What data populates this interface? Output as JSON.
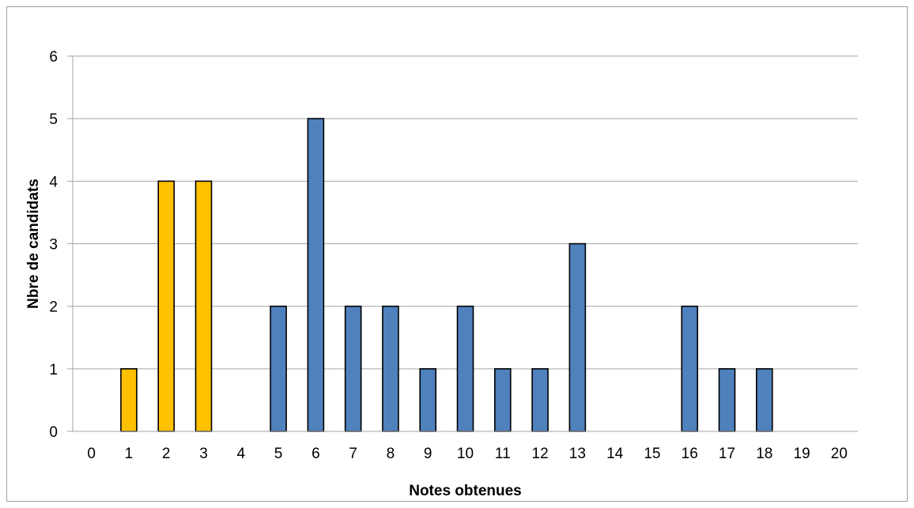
{
  "chart_data": {
    "type": "bar",
    "xlabel": "Notes obtenues",
    "ylabel": "Nbre de candidats",
    "categories": [
      "0",
      "1",
      "2",
      "3",
      "4",
      "5",
      "6",
      "7",
      "8",
      "9",
      "10",
      "11",
      "12",
      "13",
      "14",
      "15",
      "16",
      "17",
      "18",
      "19",
      "20"
    ],
    "values": [
      0,
      1,
      4,
      4,
      0,
      2,
      5,
      2,
      2,
      1,
      2,
      1,
      1,
      3,
      0,
      0,
      2,
      1,
      1,
      0,
      0
    ],
    "ylim": [
      0,
      6
    ],
    "yticks": [
      0,
      1,
      2,
      3,
      4,
      5,
      6
    ],
    "grid": true,
    "colors": {
      "low": "#ffc000",
      "high": "#4f81bd",
      "outline": "#000000",
      "grid": "#a6a6a6"
    },
    "low_categories": [
      "1",
      "2",
      "3"
    ]
  }
}
